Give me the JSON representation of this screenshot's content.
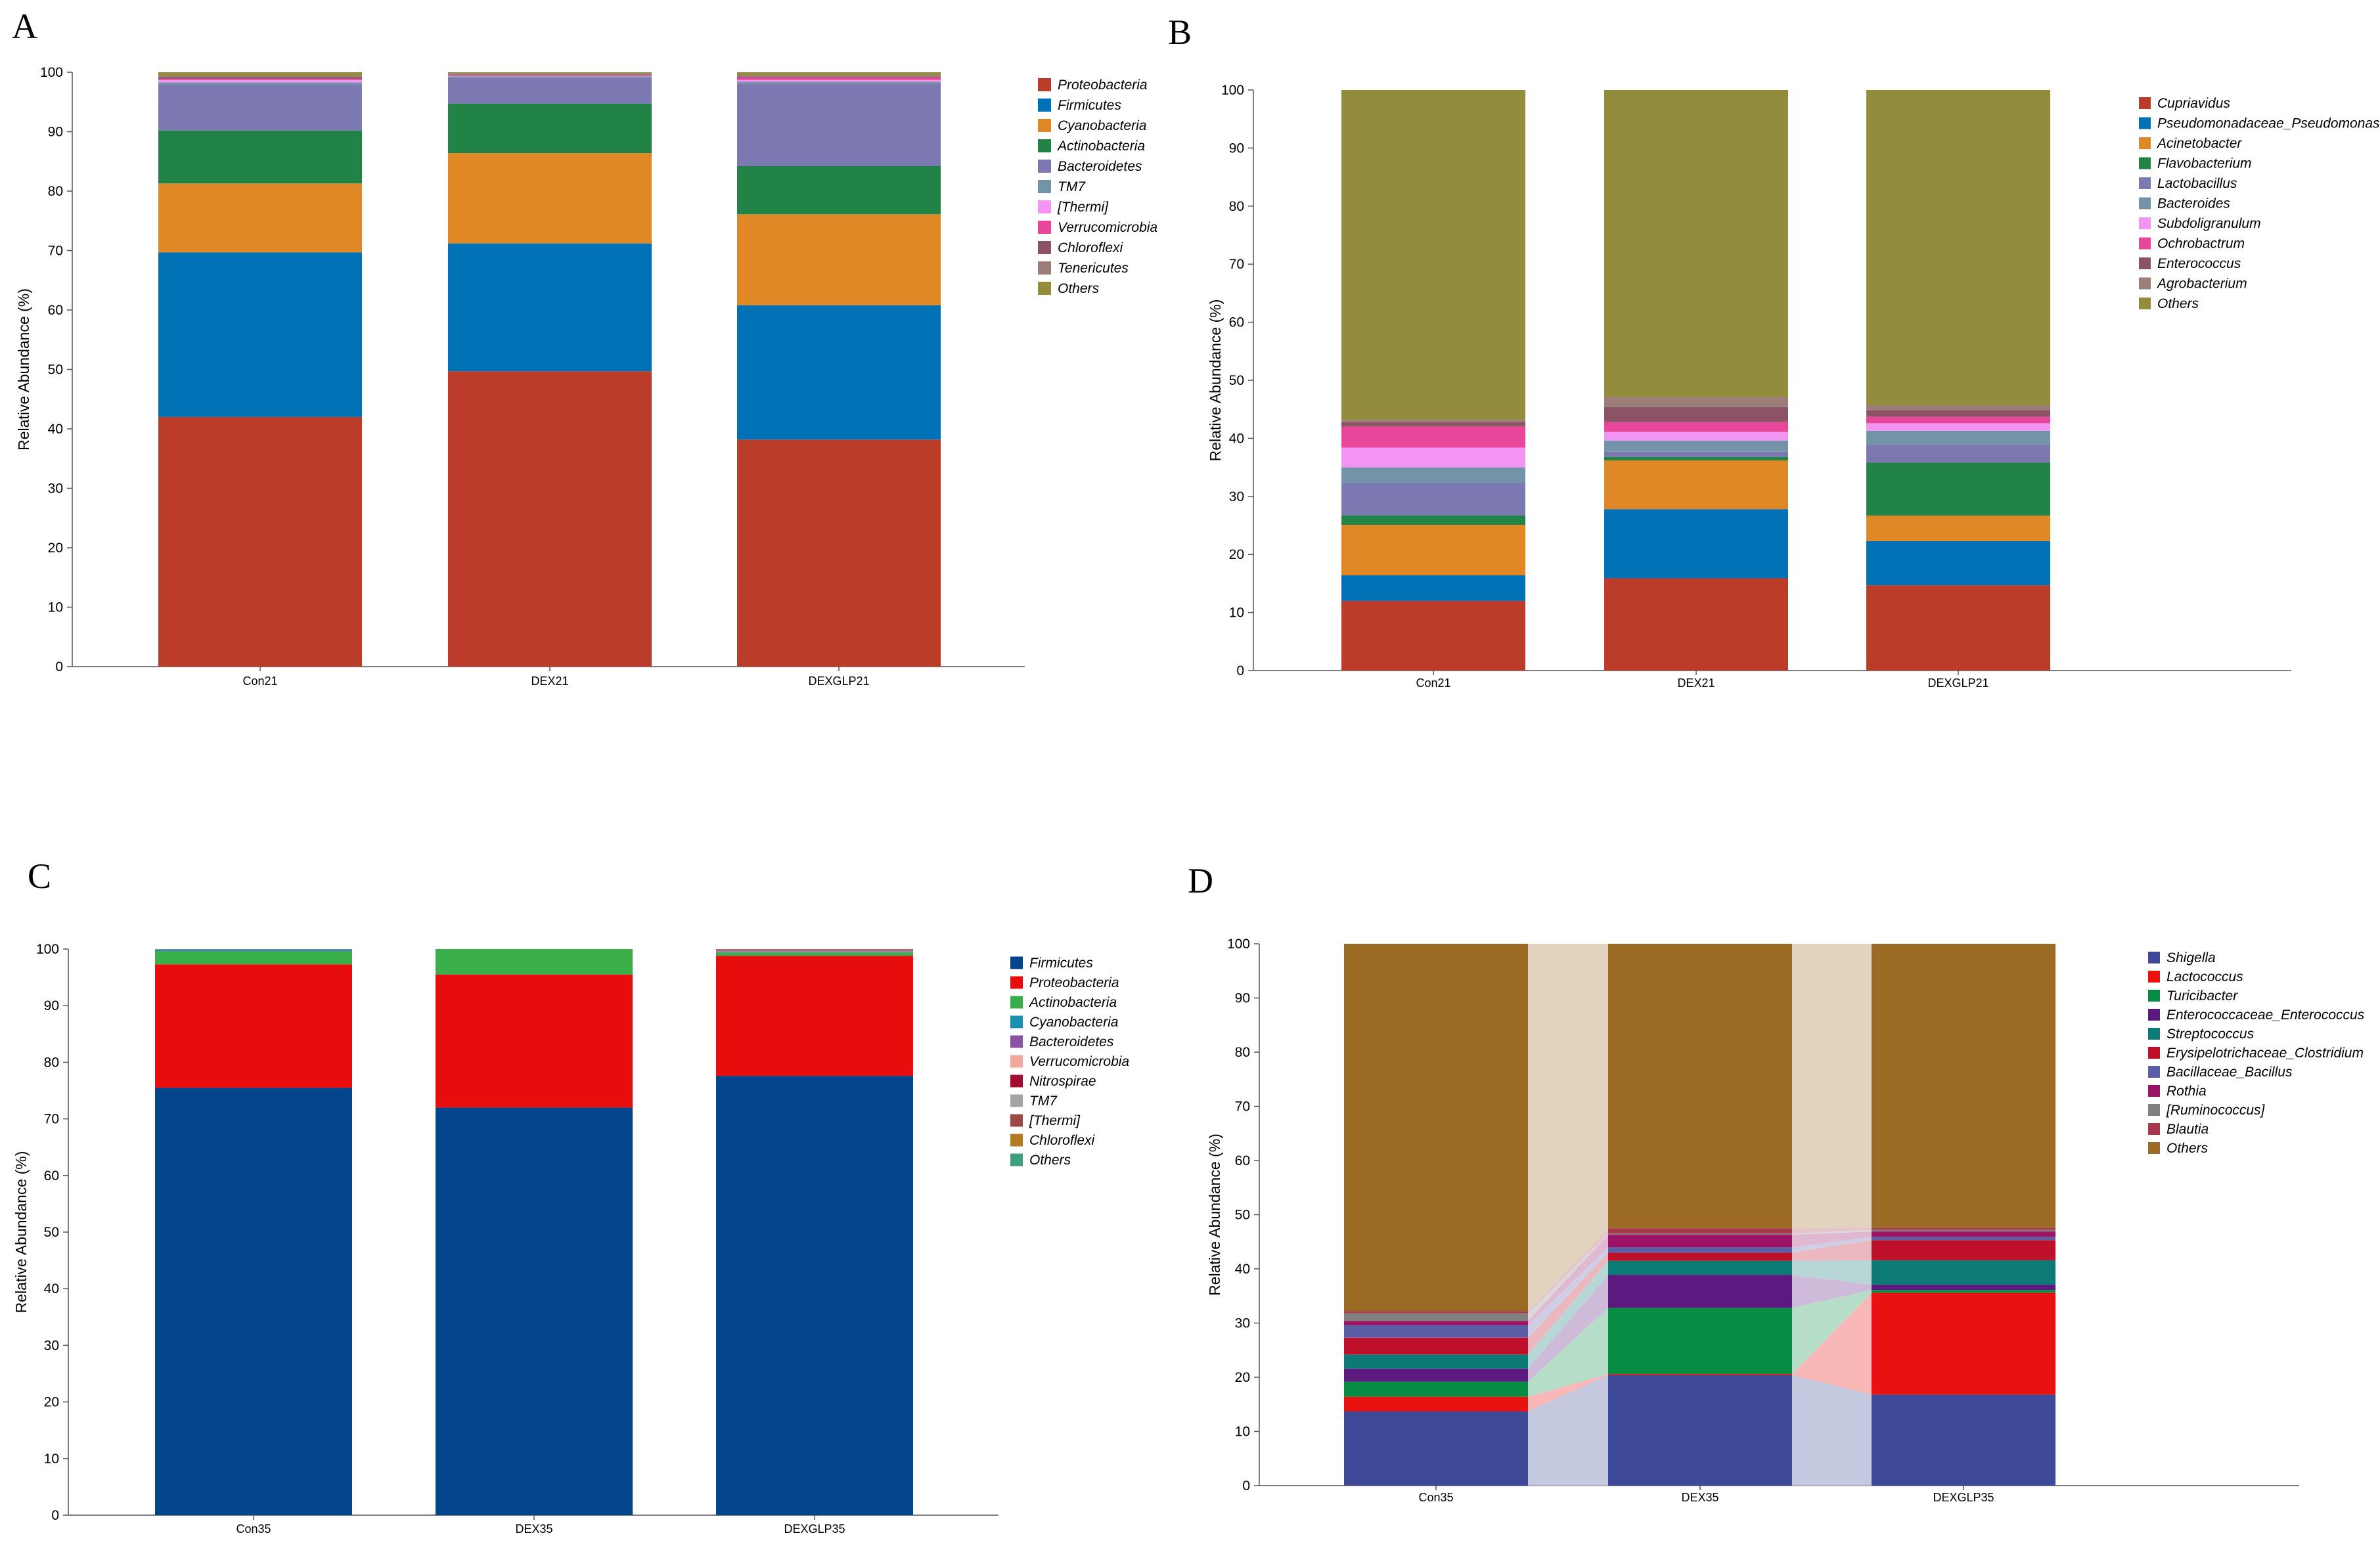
{
  "chart_data": [
    {
      "panel": "A",
      "type": "bar",
      "stacked": true,
      "ylabel": "Relative Abundance (%)",
      "ylim": [
        0,
        100
      ],
      "yticks": [
        0,
        10,
        20,
        30,
        40,
        50,
        60,
        70,
        80,
        90,
        100
      ],
      "categories": [
        "Con21",
        "DEX21",
        "DEXGLP21"
      ],
      "legend_position": "right",
      "series": [
        {
          "name": "Proteobacteria",
          "color": "#BB3C28",
          "values": [
            42.0,
            49.7,
            38.2
          ]
        },
        {
          "name": "Firmicutes",
          "color": "#0071B5",
          "values": [
            27.7,
            21.5,
            22.6
          ]
        },
        {
          "name": "Cyanobacteria",
          "color": "#E08826",
          "values": [
            11.6,
            15.2,
            15.3
          ]
        },
        {
          "name": "Actinobacteria",
          "color": "#228347",
          "values": [
            8.9,
            8.3,
            8.1
          ]
        },
        {
          "name": "Bacteroidetes",
          "color": "#7C78B2",
          "values": [
            7.7,
            4.4,
            13.9
          ]
        },
        {
          "name": "TM7",
          "color": "#7393A8",
          "values": [
            0.4,
            0.2,
            0.3
          ]
        },
        {
          "name": "[Thermi]",
          "color": "#F294F2",
          "values": [
            0.4,
            0.1,
            0.3
          ]
        },
        {
          "name": "Verrucomicrobia",
          "color": "#E8469B",
          "values": [
            0.2,
            0.1,
            0.4
          ]
        },
        {
          "name": "Chloroflexi",
          "color": "#8C5366",
          "values": [
            0.3,
            0.1,
            0.2
          ]
        },
        {
          "name": "Tenericutes",
          "color": "#9C7D77",
          "values": [
            0.2,
            0.2,
            0.2
          ]
        },
        {
          "name": "Others",
          "color": "#948C3D",
          "values": [
            0.6,
            0.2,
            0.5
          ]
        }
      ]
    },
    {
      "panel": "B",
      "type": "bar",
      "stacked": true,
      "ylabel": "Relative Abundance (%)",
      "ylim": [
        0,
        100
      ],
      "yticks": [
        0,
        10,
        20,
        30,
        40,
        50,
        60,
        70,
        80,
        90,
        100
      ],
      "categories": [
        "Con21",
        "DEX21",
        "DEXGLP21"
      ],
      "legend_position": "right",
      "series": [
        {
          "name": "Cupriavidus",
          "color": "#BB3C28",
          "values": [
            12.0,
            15.9,
            14.7
          ]
        },
        {
          "name": "Pseudomonadaceae_Pseudomonas",
          "color": "#0071B5",
          "values": [
            4.4,
            11.9,
            7.6
          ]
        },
        {
          "name": "Acinetobacter",
          "color": "#E08826",
          "values": [
            8.7,
            8.4,
            4.4
          ]
        },
        {
          "name": "Flavobacterium",
          "color": "#228347",
          "values": [
            1.6,
            0.6,
            9.1
          ]
        },
        {
          "name": "Lactobacillus",
          "color": "#7C78B2",
          "values": [
            5.6,
            0.9,
            3.1
          ]
        },
        {
          "name": "Bacteroides",
          "color": "#7393A8",
          "values": [
            2.7,
            1.9,
            2.4
          ]
        },
        {
          "name": "Subdoligranulum",
          "color": "#F294F2",
          "values": [
            3.4,
            1.5,
            1.3
          ]
        },
        {
          "name": "Ochrobactrum",
          "color": "#E8469B",
          "values": [
            3.6,
            1.7,
            1.1
          ]
        },
        {
          "name": "Enterococcus",
          "color": "#8C5366",
          "values": [
            0.8,
            2.6,
            1.1
          ]
        },
        {
          "name": "Agrobacterium",
          "color": "#9C7D77",
          "values": [
            0.4,
            1.7,
            0.9
          ]
        },
        {
          "name": "Others",
          "color": "#948C3D",
          "values": [
            56.8,
            52.9,
            54.3
          ]
        }
      ]
    },
    {
      "panel": "C",
      "type": "bar",
      "stacked": true,
      "ylabel": "Relative Abundance (%)",
      "ylim": [
        0,
        100
      ],
      "yticks": [
        0,
        10,
        20,
        30,
        40,
        50,
        60,
        70,
        80,
        90,
        100
      ],
      "categories": [
        "Con35",
        "DEX35",
        "DEXGLP35"
      ],
      "legend_position": "right",
      "series": [
        {
          "name": "Firmicutes",
          "color": "#03458C",
          "values": [
            75.5,
            72.0,
            77.6
          ]
        },
        {
          "name": "Proteobacteria",
          "color": "#E80D0D",
          "values": [
            21.8,
            23.5,
            21.2
          ]
        },
        {
          "name": "Actinobacteria",
          "color": "#3AAE49",
          "values": [
            2.3,
            4.5,
            0.6
          ]
        },
        {
          "name": "Cyanobacteria",
          "color": "#1B8FB3",
          "values": [
            0.2,
            0.0,
            0.1
          ]
        },
        {
          "name": "Bacteroidetes",
          "color": "#8A53A3",
          "values": [
            0.1,
            0.0,
            0.1
          ]
        },
        {
          "name": "Verrucomicrobia",
          "color": "#F3A69C",
          "values": [
            0.0,
            0.0,
            0.1
          ]
        },
        {
          "name": "Nitrospirae",
          "color": "#A30D33",
          "values": [
            0.0,
            0.0,
            0.1
          ]
        },
        {
          "name": "TM7",
          "color": "#A3A3A3",
          "values": [
            0.0,
            0.0,
            0.1
          ]
        },
        {
          "name": "[Thermi]",
          "color": "#9C4A46",
          "values": [
            0.0,
            0.0,
            0.1
          ]
        },
        {
          "name": "Chloroflexi",
          "color": "#B37A1F",
          "values": [
            0.0,
            0.0,
            0.0
          ]
        },
        {
          "name": "Others",
          "color": "#3E9E7E",
          "values": [
            0.1,
            0.0,
            0.0
          ]
        }
      ]
    },
    {
      "panel": "D",
      "type": "bar",
      "stacked": true,
      "flow_bands": true,
      "ylabel": "Relative Abundance (%)",
      "ylim": [
        0,
        100
      ],
      "yticks": [
        0,
        10,
        20,
        30,
        40,
        50,
        60,
        70,
        80,
        90,
        100
      ],
      "categories": [
        "Con35",
        "DEX35",
        "DEXGLP35"
      ],
      "legend_position": "right",
      "series": [
        {
          "name": "Shigella",
          "color": "#3E4A98",
          "values": [
            13.7,
            20.4,
            16.8
          ]
        },
        {
          "name": "Lactococcus",
          "color": "#EA1111",
          "values": [
            2.7,
            0.2,
            18.8
          ]
        },
        {
          "name": "Turicibacter",
          "color": "#078C44",
          "values": [
            2.8,
            12.2,
            0.5
          ]
        },
        {
          "name": "Enterococcaceae_Enterococcus",
          "color": "#5C1A80",
          "values": [
            2.4,
            6.1,
            1.0
          ]
        },
        {
          "name": "Streptococcus",
          "color": "#0C7B76",
          "values": [
            2.6,
            2.6,
            4.5
          ]
        },
        {
          "name": "Erysipelotrichaceae_Clostridium",
          "color": "#BE1129",
          "values": [
            3.1,
            1.5,
            3.7
          ]
        },
        {
          "name": "Bacillaceae_Bacillus",
          "color": "#5B5EA6",
          "values": [
            2.3,
            1.0,
            0.6
          ]
        },
        {
          "name": "Rothia",
          "color": "#9C1264",
          "values": [
            0.8,
            2.3,
            1.0
          ]
        },
        {
          "name": "[Ruminococcus]",
          "color": "#808080",
          "values": [
            1.4,
            0.2,
            0.3
          ]
        },
        {
          "name": "Blautia",
          "color": "#A8394D",
          "values": [
            0.4,
            1.0,
            0.4
          ]
        },
        {
          "name": "Others",
          "color": "#9B6B26",
          "values": [
            67.8,
            52.5,
            52.4
          ]
        }
      ]
    }
  ]
}
